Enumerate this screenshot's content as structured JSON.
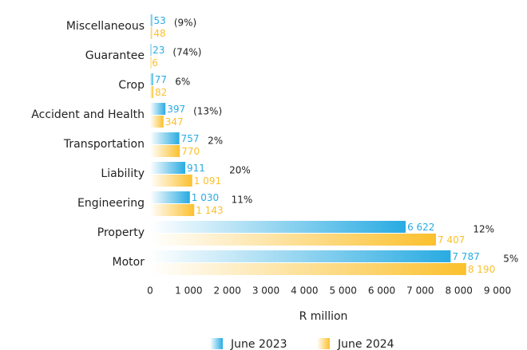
{
  "chart_data": {
    "type": "bar",
    "orientation": "horizontal",
    "categories": [
      "Miscellaneous",
      "Guarantee",
      "Crop",
      "Accident and Health",
      "Transportation",
      "Liability",
      "Engineering",
      "Property",
      "Motor"
    ],
    "series": [
      {
        "name": "June 2023",
        "color": "#29abe2",
        "values": [
          53,
          23,
          77,
          397,
          757,
          911,
          1030,
          6622,
          7787
        ],
        "value_labels": [
          "53",
          "23",
          "77",
          "397",
          "757",
          "911",
          "1 030",
          "6 622",
          "7 787"
        ]
      },
      {
        "name": "June 2024",
        "color": "#fbc02d",
        "values": [
          48,
          6,
          82,
          347,
          770,
          1091,
          1143,
          7407,
          8190
        ],
        "value_labels": [
          "48",
          "6",
          "82",
          "347",
          "770",
          "1 091",
          "1 143",
          "7 407",
          "8 190"
        ]
      }
    ],
    "changes": [
      "(9%)",
      "(74%)",
      "6%",
      "(13%)",
      "2%",
      "20%",
      "11%",
      "12%",
      "5%"
    ],
    "xlabel": "R million",
    "xlim": [
      0,
      9000
    ],
    "xticks": [
      0,
      {
        "value": 1000,
        "label": "1 000"
      },
      {
        "value": 2000,
        "label": "2 000"
      },
      {
        "value": 3000,
        "label": "3 000"
      },
      {
        "value": 4000,
        "label": "4 000"
      },
      {
        "value": 5000,
        "label": "5 000"
      },
      {
        "value": 6000,
        "label": "6 000"
      },
      {
        "value": 7000,
        "label": "7 000"
      },
      {
        "value": 8000,
        "label": "8 000"
      },
      {
        "value": 9000,
        "label": "9 000"
      }
    ],
    "legend": "bottom"
  }
}
